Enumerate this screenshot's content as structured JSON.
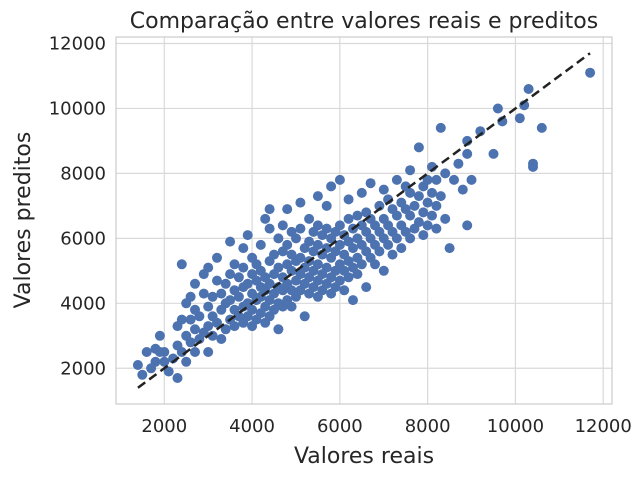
{
  "chart_data": {
    "type": "scatter",
    "title": "Comparação entre valores reais e preditos",
    "xlabel": "Valores reais",
    "ylabel": "Valores preditos",
    "xlim": [
      900,
      12200
    ],
    "ylim": [
      900,
      12200
    ],
    "xticks": [
      2000,
      4000,
      6000,
      8000,
      10000,
      12000
    ],
    "yticks": [
      2000,
      4000,
      6000,
      8000,
      10000,
      12000
    ],
    "grid": true,
    "colors": {
      "points": "#4C72B0",
      "reference_line": "#222222",
      "grid": "#d9d9d9",
      "background": "#ffffff"
    },
    "reference_line": {
      "style": "dashed",
      "from": [
        1400,
        1400
      ],
      "to": [
        11700,
        11700
      ]
    },
    "series": [
      {
        "points": [
          [
            1400,
            2100
          ],
          [
            1500,
            1800
          ],
          [
            1600,
            2500
          ],
          [
            1700,
            2000
          ],
          [
            1800,
            2600
          ],
          [
            1800,
            2200
          ],
          [
            1900,
            2500
          ],
          [
            1900,
            3000
          ],
          [
            2000,
            2200
          ],
          [
            2000,
            2500
          ],
          [
            2100,
            1900
          ],
          [
            2200,
            2300
          ],
          [
            2300,
            1700
          ],
          [
            2300,
            2700
          ],
          [
            2300,
            3300
          ],
          [
            2400,
            2500
          ],
          [
            2400,
            3500
          ],
          [
            2400,
            5200
          ],
          [
            2500,
            2200
          ],
          [
            2500,
            3000
          ],
          [
            2500,
            4000
          ],
          [
            2600,
            2800
          ],
          [
            2600,
            3500
          ],
          [
            2600,
            4200
          ],
          [
            2700,
            2500
          ],
          [
            2700,
            3200
          ],
          [
            2700,
            3800
          ],
          [
            2700,
            4600
          ],
          [
            2800,
            2900
          ],
          [
            2800,
            3600
          ],
          [
            2900,
            3100
          ],
          [
            2900,
            4300
          ],
          [
            2900,
            4900
          ],
          [
            3000,
            2500
          ],
          [
            3000,
            3300
          ],
          [
            3000,
            3900
          ],
          [
            3000,
            5100
          ],
          [
            3100,
            3000
          ],
          [
            3100,
            3600
          ],
          [
            3100,
            4200
          ],
          [
            3200,
            3400
          ],
          [
            3200,
            4700
          ],
          [
            3200,
            5400
          ],
          [
            3300,
            2900
          ],
          [
            3300,
            3800
          ],
          [
            3300,
            4300
          ],
          [
            3400,
            3200
          ],
          [
            3400,
            4000
          ],
          [
            3400,
            4600
          ],
          [
            3500,
            3500
          ],
          [
            3500,
            4100
          ],
          [
            3500,
            4900
          ],
          [
            3500,
            5900
          ],
          [
            3600,
            3300
          ],
          [
            3600,
            3800
          ],
          [
            3600,
            4400
          ],
          [
            3600,
            5200
          ],
          [
            3700,
            3600
          ],
          [
            3700,
            4200
          ],
          [
            3700,
            4800
          ],
          [
            3800,
            3400
          ],
          [
            3800,
            3900
          ],
          [
            3800,
            4500
          ],
          [
            3800,
            5100
          ],
          [
            3800,
            5700
          ],
          [
            3900,
            3600
          ],
          [
            3900,
            4000
          ],
          [
            3900,
            4600
          ],
          [
            3900,
            6100
          ],
          [
            4000,
            3300
          ],
          [
            4000,
            3800
          ],
          [
            4000,
            4300
          ],
          [
            4000,
            4900
          ],
          [
            4000,
            5400
          ],
          [
            4100,
            3500
          ],
          [
            4100,
            4100
          ],
          [
            4100,
            4700
          ],
          [
            4100,
            5200
          ],
          [
            4200,
            3700
          ],
          [
            4200,
            4200
          ],
          [
            4200,
            4500
          ],
          [
            4200,
            5000
          ],
          [
            4200,
            5800
          ],
          [
            4300,
            3400
          ],
          [
            4300,
            3900
          ],
          [
            4300,
            4400
          ],
          [
            4300,
            4800
          ],
          [
            4300,
            6600
          ],
          [
            4400,
            3600
          ],
          [
            4400,
            4100
          ],
          [
            4400,
            4600
          ],
          [
            4400,
            5300
          ],
          [
            4400,
            6300
          ],
          [
            4400,
            6900
          ],
          [
            4500,
            3800
          ],
          [
            4500,
            4300
          ],
          [
            4500,
            4900
          ],
          [
            4500,
            5500
          ],
          [
            4600,
            3200
          ],
          [
            4600,
            4000
          ],
          [
            4600,
            4500
          ],
          [
            4600,
            5100
          ],
          [
            4600,
            6000
          ],
          [
            4700,
            3900
          ],
          [
            4700,
            4400
          ],
          [
            4700,
            4800
          ],
          [
            4700,
            5600
          ],
          [
            4700,
            6400
          ],
          [
            4800,
            4100
          ],
          [
            4800,
            4600
          ],
          [
            4800,
            5200
          ],
          [
            4800,
            5800
          ],
          [
            4800,
            6900
          ],
          [
            4900,
            3900
          ],
          [
            4900,
            4400
          ],
          [
            4900,
            5000
          ],
          [
            4900,
            5500
          ],
          [
            4900,
            6200
          ],
          [
            5000,
            4200
          ],
          [
            5000,
            4700
          ],
          [
            5000,
            5300
          ],
          [
            5000,
            6000
          ],
          [
            5100,
            4400
          ],
          [
            5100,
            4900
          ],
          [
            5100,
            5400
          ],
          [
            5100,
            6300
          ],
          [
            5100,
            7100
          ],
          [
            5200,
            3600
          ],
          [
            5200,
            4600
          ],
          [
            5200,
            5100
          ],
          [
            5200,
            5700
          ],
          [
            5300,
            4300
          ],
          [
            5300,
            4800
          ],
          [
            5300,
            5300
          ],
          [
            5300,
            5900
          ],
          [
            5300,
            6600
          ],
          [
            5400,
            4500
          ],
          [
            5400,
            5000
          ],
          [
            5400,
            5600
          ],
          [
            5400,
            6200
          ],
          [
            5500,
            4200
          ],
          [
            5500,
            4700
          ],
          [
            5500,
            5200
          ],
          [
            5500,
            5800
          ],
          [
            5500,
            6400
          ],
          [
            5500,
            7300
          ],
          [
            5600,
            4400
          ],
          [
            5600,
            4900
          ],
          [
            5600,
            5500
          ],
          [
            5600,
            6100
          ],
          [
            5700,
            4600
          ],
          [
            5700,
            5100
          ],
          [
            5700,
            5700
          ],
          [
            5700,
            6300
          ],
          [
            5700,
            7000
          ],
          [
            5800,
            4300
          ],
          [
            5800,
            4800
          ],
          [
            5800,
            5400
          ],
          [
            5800,
            6000
          ],
          [
            5800,
            7600
          ],
          [
            5900,
            4500
          ],
          [
            5900,
            5000
          ],
          [
            5900,
            5600
          ],
          [
            5900,
            6200
          ],
          [
            6000,
            4700
          ],
          [
            6000,
            5200
          ],
          [
            6000,
            5800
          ],
          [
            6000,
            6400
          ],
          [
            6000,
            7800
          ],
          [
            6100,
            4400
          ],
          [
            6100,
            5000
          ],
          [
            6100,
            5500
          ],
          [
            6100,
            6100
          ],
          [
            6200,
            4800
          ],
          [
            6200,
            5300
          ],
          [
            6200,
            5900
          ],
          [
            6200,
            6600
          ],
          [
            6200,
            7200
          ],
          [
            6300,
            4100
          ],
          [
            6300,
            5100
          ],
          [
            6300,
            5700
          ],
          [
            6300,
            6300
          ],
          [
            6400,
            4900
          ],
          [
            6400,
            5400
          ],
          [
            6400,
            6000
          ],
          [
            6400,
            6700
          ],
          [
            6500,
            5200
          ],
          [
            6500,
            5800
          ],
          [
            6500,
            6400
          ],
          [
            6500,
            7400
          ],
          [
            6600,
            4500
          ],
          [
            6600,
            5600
          ],
          [
            6600,
            6200
          ],
          [
            6600,
            6800
          ],
          [
            6700,
            5400
          ],
          [
            6700,
            6000
          ],
          [
            6700,
            6600
          ],
          [
            6700,
            7700
          ],
          [
            6800,
            5200
          ],
          [
            6800,
            5800
          ],
          [
            6800,
            6400
          ],
          [
            6900,
            5600
          ],
          [
            6900,
            6200
          ],
          [
            6900,
            7000
          ],
          [
            7000,
            5000
          ],
          [
            7000,
            6000
          ],
          [
            7000,
            6600
          ],
          [
            7000,
            7500
          ],
          [
            7100,
            5800
          ],
          [
            7100,
            6400
          ],
          [
            7100,
            7200
          ],
          [
            7200,
            5500
          ],
          [
            7200,
            6200
          ],
          [
            7200,
            6900
          ],
          [
            7300,
            6000
          ],
          [
            7300,
            6700
          ],
          [
            7300,
            7800
          ],
          [
            7400,
            5700
          ],
          [
            7400,
            6400
          ],
          [
            7400,
            7100
          ],
          [
            7500,
            6200
          ],
          [
            7500,
            6900
          ],
          [
            7500,
            7600
          ],
          [
            7600,
            6000
          ],
          [
            7600,
            6700
          ],
          [
            7600,
            7400
          ],
          [
            7600,
            8100
          ],
          [
            7700,
            6300
          ],
          [
            7700,
            7000
          ],
          [
            7800,
            6500
          ],
          [
            7800,
            7300
          ],
          [
            7800,
            8800
          ],
          [
            7900,
            6100
          ],
          [
            7900,
            6800
          ],
          [
            7900,
            7600
          ],
          [
            8000,
            6400
          ],
          [
            8000,
            7100
          ],
          [
            8000,
            7800
          ],
          [
            8100,
            6700
          ],
          [
            8100,
            7400
          ],
          [
            8100,
            8200
          ],
          [
            8200,
            6300
          ],
          [
            8200,
            7000
          ],
          [
            8200,
            7800
          ],
          [
            8300,
            9400
          ],
          [
            8300,
            7300
          ],
          [
            8400,
            6600
          ],
          [
            8400,
            8000
          ],
          [
            8500,
            5700
          ],
          [
            8600,
            7800
          ],
          [
            8700,
            8300
          ],
          [
            8800,
            7500
          ],
          [
            8900,
            6400
          ],
          [
            8900,
            8600
          ],
          [
            8900,
            9000
          ],
          [
            9000,
            7800
          ],
          [
            9200,
            9300
          ],
          [
            9500,
            8600
          ],
          [
            9600,
            10000
          ],
          [
            9700,
            9600
          ],
          [
            10100,
            9700
          ],
          [
            10200,
            10100
          ],
          [
            10300,
            10600
          ],
          [
            10400,
            8200
          ],
          [
            10400,
            8300
          ],
          [
            10600,
            9400
          ],
          [
            11700,
            11100
          ]
        ]
      }
    ]
  }
}
